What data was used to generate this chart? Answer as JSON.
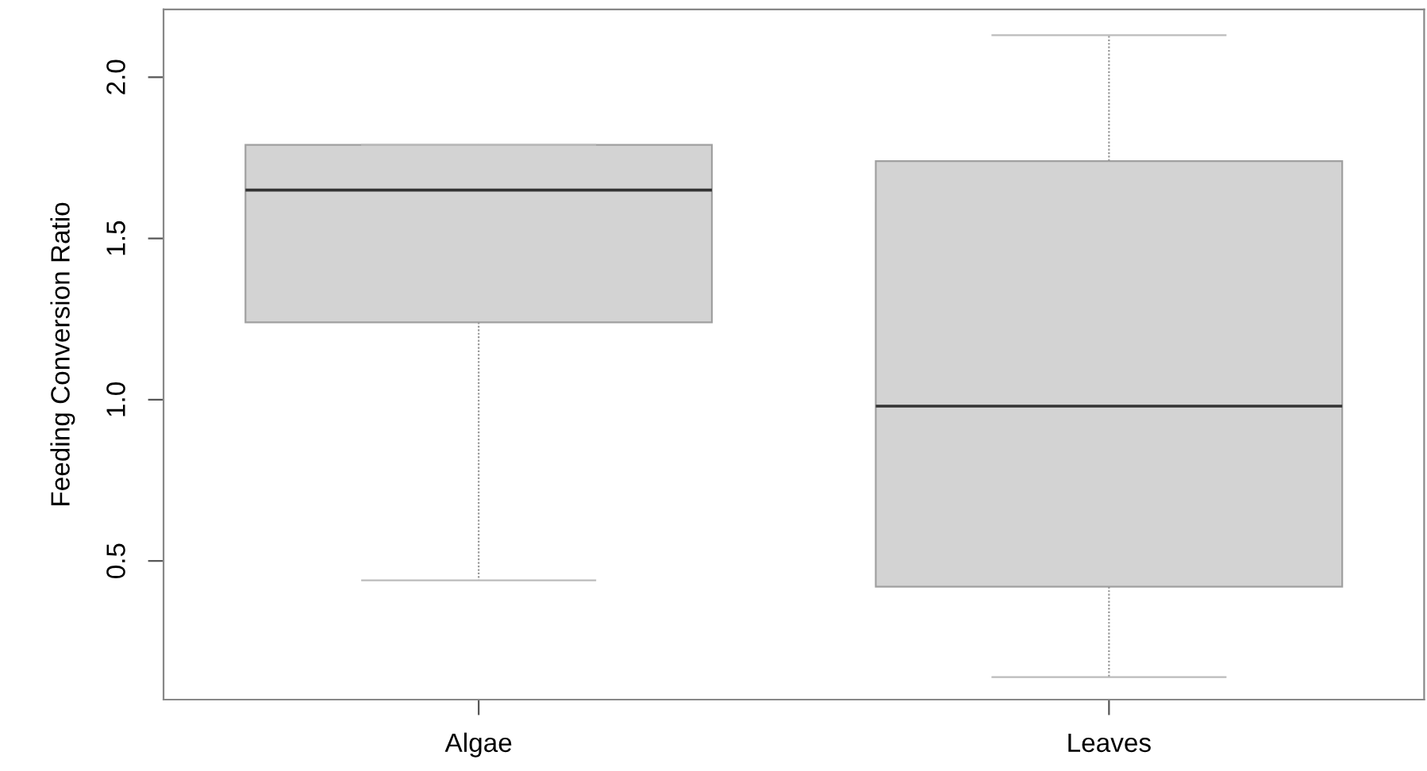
{
  "chart_data": {
    "type": "box",
    "ylabel": "Feeding Conversion Ratio",
    "categories": [
      "Algae",
      "Leaves"
    ],
    "color": "#d3d3d3",
    "boxes": [
      {
        "low": 0.44,
        "q1": 1.24,
        "median": 1.65,
        "q3": 1.79,
        "high": 1.79
      },
      {
        "low": 0.14,
        "q1": 0.42,
        "median": 0.98,
        "q3": 1.74,
        "high": 2.13
      }
    ],
    "ylim": [
      0.07,
      2.21
    ],
    "yticks": [
      0.5,
      {
        "value": 1,
        "label": "1.0"
      },
      1.5,
      {
        "value": 2,
        "label": "2.0"
      }
    ],
    "grid": false
  }
}
